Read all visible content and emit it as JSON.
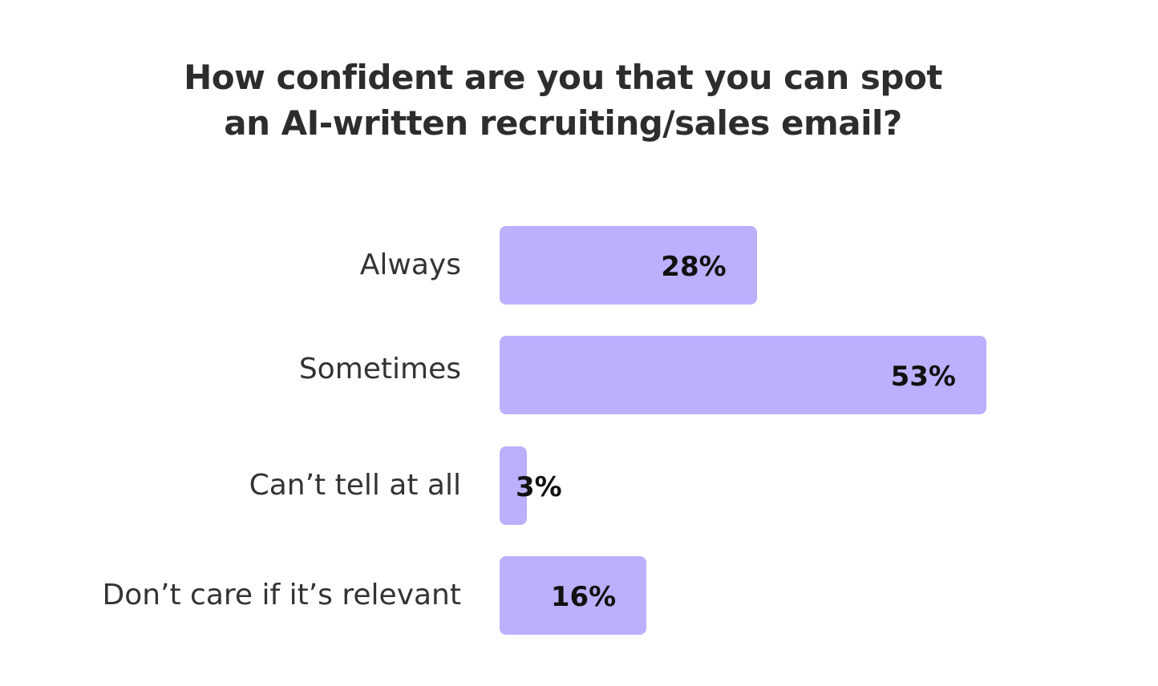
{
  "chart_data": {
    "type": "bar",
    "orientation": "horizontal",
    "title_lines": [
      "How confident are you that you can spot",
      "an AI-written recruiting/sales email?"
    ],
    "categories": [
      "Always",
      "Sometimes",
      "Can’t tell at all",
      "Don’t care if it’s relevant"
    ],
    "values": [
      28,
      53,
      3,
      16
    ],
    "value_labels": [
      "28%",
      "53%",
      "3%",
      "16%"
    ],
    "unit": "%",
    "xlim": [
      0,
      53
    ],
    "grid": false,
    "legend": "none",
    "bar_color": "#bbb0fd"
  }
}
